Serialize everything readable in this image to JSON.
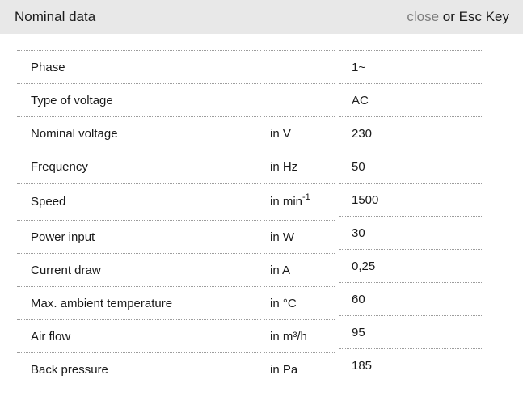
{
  "header": {
    "title": "Nominal data",
    "close_label": "close",
    "close_suffix": " or Esc Key"
  },
  "colors": {
    "header_bg": "#e8e8e8",
    "row_border": "#9c9c9c",
    "text": "#1a1a1a",
    "close_link": "#7e7e7e"
  },
  "table": {
    "rows": [
      {
        "label": "Phase",
        "unit": "",
        "unit_sup": "",
        "value": "1~"
      },
      {
        "label": "Type of voltage",
        "unit": "",
        "unit_sup": "",
        "value": "AC"
      },
      {
        "label": "Nominal voltage",
        "unit": "in V",
        "unit_sup": "",
        "value": "230"
      },
      {
        "label": "Frequency",
        "unit": "in Hz",
        "unit_sup": "",
        "value": "50"
      },
      {
        "label": "Speed",
        "unit": "in min",
        "unit_sup": "-1",
        "value": "1500"
      },
      {
        "label": "Power input",
        "unit": "in W",
        "unit_sup": "",
        "value": "30"
      },
      {
        "label": "Current draw",
        "unit": "in A",
        "unit_sup": "",
        "value": "0,25"
      },
      {
        "label": "Max. ambient temperature",
        "unit": "in °C",
        "unit_sup": "",
        "value": "60"
      },
      {
        "label": "Air flow",
        "unit": "in m³/h",
        "unit_sup": "",
        "value": "95"
      },
      {
        "label": "Back pressure",
        "unit": "in Pa",
        "unit_sup": "",
        "value": "185"
      }
    ]
  }
}
